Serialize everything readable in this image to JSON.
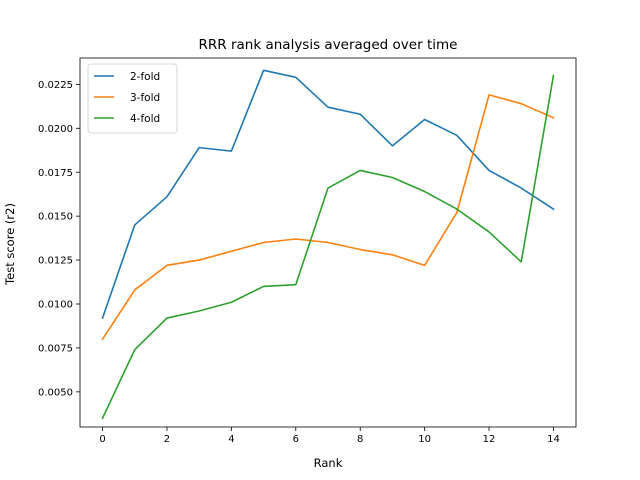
{
  "chart_data": {
    "type": "line",
    "title": "RRR rank analysis averaged over time",
    "xlabel": "Rank",
    "ylabel": "Test score (r2)",
    "x": [
      0,
      1,
      2,
      3,
      4,
      5,
      6,
      7,
      8,
      9,
      10,
      11,
      12,
      13,
      14
    ],
    "xlim": [
      -0.7,
      14.7
    ],
    "ylim": [
      0.003,
      0.024
    ],
    "xticks": [
      0,
      2,
      4,
      6,
      8,
      10,
      12,
      14
    ],
    "xtick_labels": [
      "0",
      "2",
      "4",
      "6",
      "8",
      "10",
      "12",
      "14"
    ],
    "yticks": [
      0.005,
      0.0075,
      0.01,
      0.0125,
      0.015,
      0.0175,
      0.02,
      0.0225
    ],
    "ytick_labels": [
      "0.0050",
      "0.0075",
      "0.0100",
      "0.0125",
      "0.0150",
      "0.0175",
      "0.0200",
      "0.0225"
    ],
    "grid": false,
    "legend_position": "top-left",
    "series": [
      {
        "name": "2-fold",
        "color": "#1f77b4",
        "values": [
          0.0092,
          0.0145,
          0.0161,
          0.0189,
          0.0187,
          0.0233,
          0.0229,
          0.0212,
          0.0208,
          0.019,
          0.0205,
          0.0196,
          0.0176,
          0.0166,
          0.0154
        ]
      },
      {
        "name": "3-fold",
        "color": "#ff7f0e",
        "values": [
          0.008,
          0.0108,
          0.0122,
          0.0125,
          0.013,
          0.0135,
          0.0137,
          0.0135,
          0.0131,
          0.0128,
          0.0122,
          0.0152,
          0.0219,
          0.0214,
          0.0206
        ]
      },
      {
        "name": "4-fold",
        "color": "#2ca02c",
        "values": [
          0.0035,
          0.0074,
          0.0092,
          0.0096,
          0.0101,
          0.011,
          0.0111,
          0.0166,
          0.0176,
          0.0172,
          0.0164,
          0.0154,
          0.0141,
          0.0124,
          0.023
        ]
      }
    ]
  }
}
